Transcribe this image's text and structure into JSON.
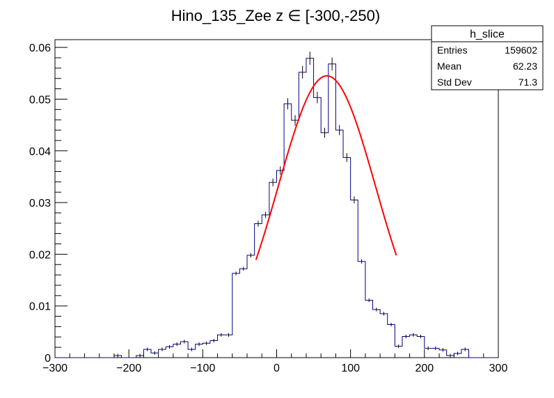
{
  "chart_data": {
    "type": "histogram",
    "title": "Hino_135_Zee z  ∈ [-300,-250)",
    "xlabel": "",
    "ylabel": "",
    "xlim": [
      -300,
      300
    ],
    "ylim": [
      0,
      0.0615
    ],
    "x_ticks": [
      -300,
      -200,
      -100,
      0,
      100,
      200,
      300
    ],
    "x_tick_labels": [
      "−300",
      "−200",
      "−100",
      "0",
      "100",
      "200",
      "300"
    ],
    "y_ticks": [
      0,
      0.01,
      0.02,
      0.03,
      0.04,
      0.05,
      0.06
    ],
    "y_tick_labels": [
      "0",
      "0.01",
      "0.02",
      "0.03",
      "0.04",
      "0.05",
      "0.06"
    ],
    "bin_width": 10,
    "bin_low_edges": [
      -300,
      -290,
      -280,
      -270,
      -260,
      -250,
      -240,
      -230,
      -220,
      -210,
      -200,
      -190,
      -180,
      -170,
      -160,
      -150,
      -140,
      -130,
      -120,
      -110,
      -100,
      -90,
      -80,
      -70,
      -60,
      -50,
      -40,
      -30,
      -20,
      -10,
      0,
      10,
      20,
      30,
      40,
      50,
      60,
      70,
      80,
      90,
      100,
      110,
      120,
      130,
      140,
      150,
      160,
      170,
      180,
      190,
      200,
      210,
      220,
      230,
      240,
      250,
      260,
      270,
      280,
      290
    ],
    "bin_values": [
      0,
      0,
      0,
      0,
      0,
      0,
      0,
      0,
      0.0004,
      0,
      0,
      0.0004,
      0.0016,
      0.0009,
      0.0016,
      0.0021,
      0.0026,
      0.0031,
      0.0016,
      0.0026,
      0.0028,
      0.0033,
      0.0044,
      0.0044,
      0.0163,
      0.0172,
      0.0198,
      0.0259,
      0.0276,
      0.0339,
      0.0362,
      0.0491,
      0.0459,
      0.0552,
      0.0579,
      0.0503,
      0.0435,
      0.0568,
      0.044,
      0.0387,
      0.0305,
      0.0186,
      0.0111,
      0.0093,
      0.0085,
      0.0064,
      0.0022,
      0.0041,
      0.0044,
      0.0041,
      0.0018,
      0.0018,
      0.0015,
      0.0004,
      0.0008,
      0.0016,
      0,
      0,
      0,
      0
    ],
    "line_color": "#000080",
    "fit": {
      "type": "gaussian",
      "color": "#ff0000",
      "amplitude": 0.0545,
      "mean": 68,
      "sigma": 66,
      "range": [
        -28,
        162
      ]
    },
    "stats_box": {
      "title": "h_slice",
      "rows": [
        {
          "label": "Entries",
          "value": "159602"
        },
        {
          "label": "Mean",
          "value": "62.23"
        },
        {
          "label": "Std Dev",
          "value": "71.3"
        }
      ]
    }
  }
}
